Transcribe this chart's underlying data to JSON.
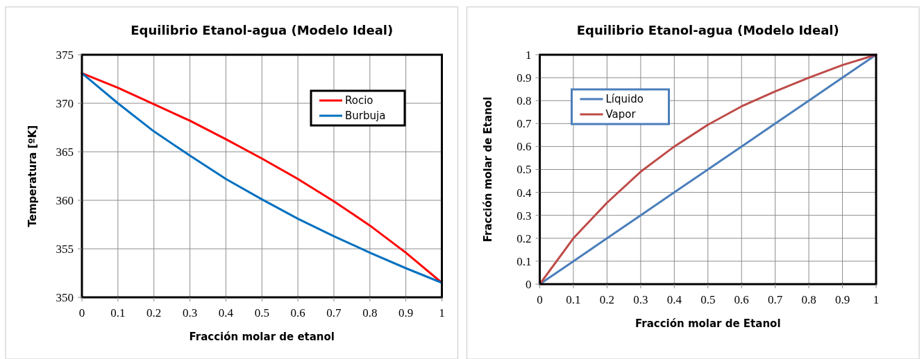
{
  "chart_data": [
    {
      "type": "line",
      "title": "Equilibrio Etanol-agua (Modelo Ideal)",
      "xlabel": "Fracción molar de etanol",
      "ylabel": "Temperatura [ºK]",
      "x": [
        0,
        0.1,
        0.2,
        0.3,
        0.4,
        0.5,
        0.6,
        0.7,
        0.8,
        0.9,
        1
      ],
      "xlim": [
        0,
        1
      ],
      "xticks": [
        0,
        0.1,
        0.2,
        0.3,
        0.4,
        0.5,
        0.6,
        0.7,
        0.8,
        0.9,
        1
      ],
      "ylim": [
        350,
        375
      ],
      "yticks": [
        350,
        355,
        360,
        365,
        370,
        375
      ],
      "grid": true,
      "legend": "top right",
      "marker": "none",
      "line_style": "solid",
      "series": [
        {
          "name": "Rocio",
          "color": "#ff0000",
          "values": [
            373.1,
            371.6,
            369.9,
            368.2,
            366.3,
            364.3,
            362.2,
            359.9,
            357.4,
            354.6,
            351.5
          ]
        },
        {
          "name": "Burbuja",
          "color": "#0070c0",
          "values": [
            373.1,
            370.0,
            367.1,
            364.6,
            362.2,
            360.1,
            358.1,
            356.3,
            354.6,
            353.0,
            351.5
          ]
        }
      ]
    },
    {
      "type": "line",
      "title": "Equilibrio Etanol-agua (Modelo Ideal)",
      "xlabel": "Fracción molar de Etanol",
      "ylabel": "Fracción molar de Etanol",
      "x": [
        0,
        0.1,
        0.2,
        0.3,
        0.4,
        0.5,
        0.6,
        0.7,
        0.8,
        0.9,
        1
      ],
      "xlim": [
        0,
        1
      ],
      "xticks": [
        0,
        0.1,
        0.2,
        0.3,
        0.4,
        0.5,
        0.6,
        0.7,
        0.8,
        0.9,
        1
      ],
      "ylim": [
        0,
        1
      ],
      "yticks": [
        0,
        0.1,
        0.2,
        0.3,
        0.4,
        0.5,
        0.6,
        0.7,
        0.8,
        0.9,
        1
      ],
      "grid": true,
      "legend": "top left",
      "marker": "none",
      "line_style": "solid",
      "series": [
        {
          "name": "Líquido",
          "color": "#4a7ebb",
          "values": [
            0,
            0.1,
            0.2,
            0.3,
            0.4,
            0.5,
            0.6,
            0.7,
            0.8,
            0.9,
            1
          ]
        },
        {
          "name": "Vapor",
          "color": "#be4b48",
          "values": [
            0,
            0.2,
            0.355,
            0.49,
            0.6,
            0.695,
            0.775,
            0.84,
            0.9,
            0.955,
            1
          ]
        }
      ]
    }
  ]
}
